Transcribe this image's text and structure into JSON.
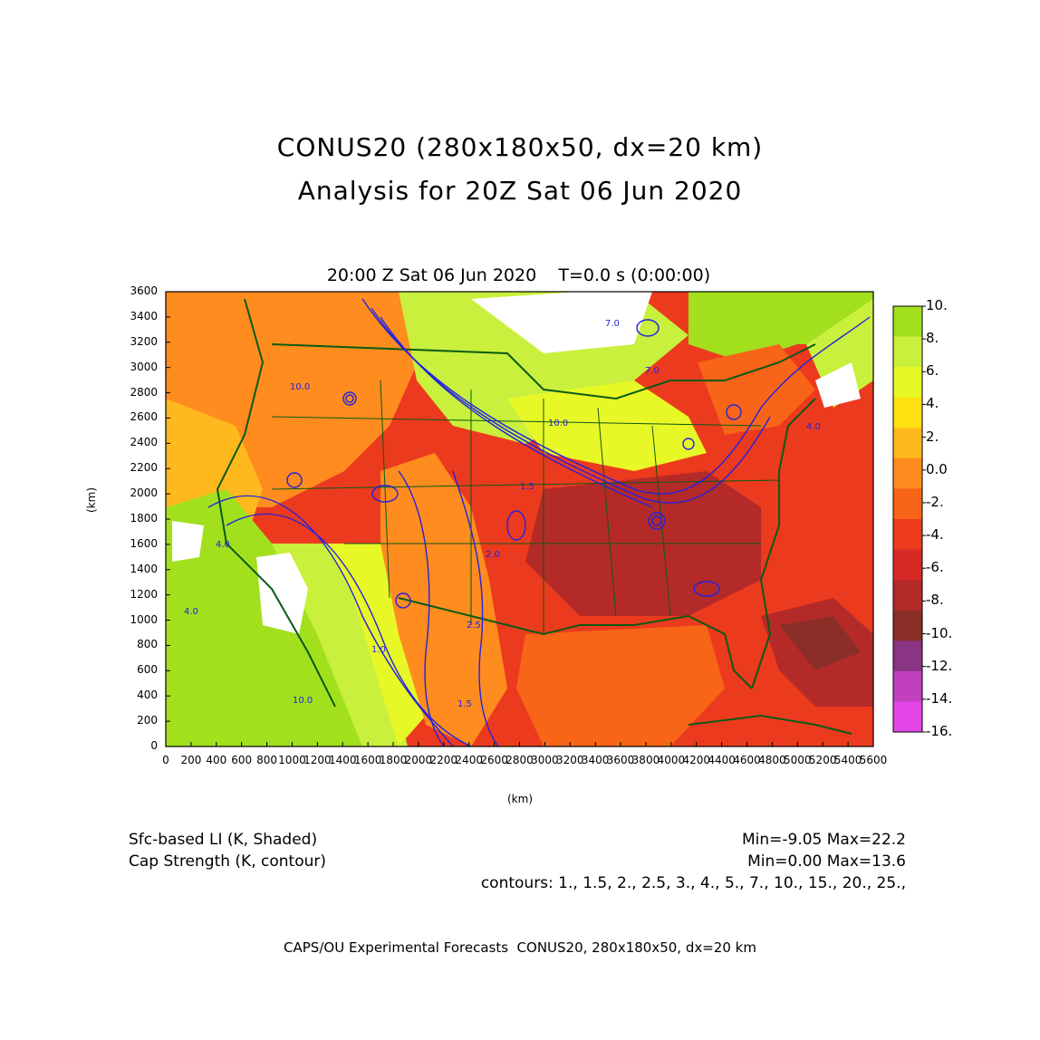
{
  "title": {
    "line1": "CONUS20 (280x180x50, dx=20 km)",
    "line2": "Analysis for 20Z Sat 06 Jun 2020"
  },
  "map": {
    "time_label": "20:00 Z Sat 06 Jun 2020    T=0.0 s (0:00:00)",
    "x_axis": {
      "label": "(km)",
      "range": [
        0,
        5600
      ],
      "ticks": [
        "0",
        "200",
        "400",
        "600",
        "800",
        "1000",
        "1200",
        "1400",
        "1600",
        "1800",
        "2000",
        "2200",
        "2400",
        "2600",
        "2800",
        "3000",
        "3200",
        "3400",
        "3600",
        "3800",
        "4000",
        "4200",
        "4400",
        "4600",
        "4800",
        "5000",
        "5200",
        "5400",
        "5600"
      ]
    },
    "y_axis": {
      "label": "(km)",
      "range": [
        0,
        3600
      ],
      "ticks": [
        "0",
        "200",
        "400",
        "600",
        "800",
        "1000",
        "1200",
        "1400",
        "1600",
        "1800",
        "2000",
        "2200",
        "2400",
        "2600",
        "2800",
        "3000",
        "3200",
        "3400",
        "3600"
      ]
    },
    "contour_labels": [
      "7.0",
      "4.0",
      "4.0",
      "10.0",
      "10.0",
      "2.5",
      "1.5",
      "1.0",
      "7.0",
      "10.0",
      "4.0",
      "1.5",
      "2.0"
    ]
  },
  "colorbar": {
    "labels": [
      "10.",
      "8.",
      "6.",
      "4.",
      "2.",
      "0.0",
      "-2.",
      "-4.",
      "-6.",
      "-8.",
      "-10.",
      "-12.",
      "-14.",
      "-16."
    ],
    "colors": [
      "#a2e01e",
      "#c8f03c",
      "#e8f826",
      "#ffe010",
      "#ffb81e",
      "#ff8c1e",
      "#f86418",
      "#ec3a1e",
      "#d62a26",
      "#b42a28",
      "#8c2e28",
      "#8a3484",
      "#c040c0",
      "#e246e6"
    ]
  },
  "footer": {
    "field1": "Sfc-based LI (K, Shaded)",
    "field2": "Cap Strength (K, contour)",
    "stats1": "Min=-9.05 Max=22.2",
    "stats2": "Min=0.00 Max=13.6",
    "contours": "contours: 1., 1.5, 2., 2.5, 3., 4., 5., 7., 10., 15., 20., 25.,",
    "credit": "CAPS/OU Experimental Forecasts  CONUS20, 280x180x50, dx=20 km"
  }
}
